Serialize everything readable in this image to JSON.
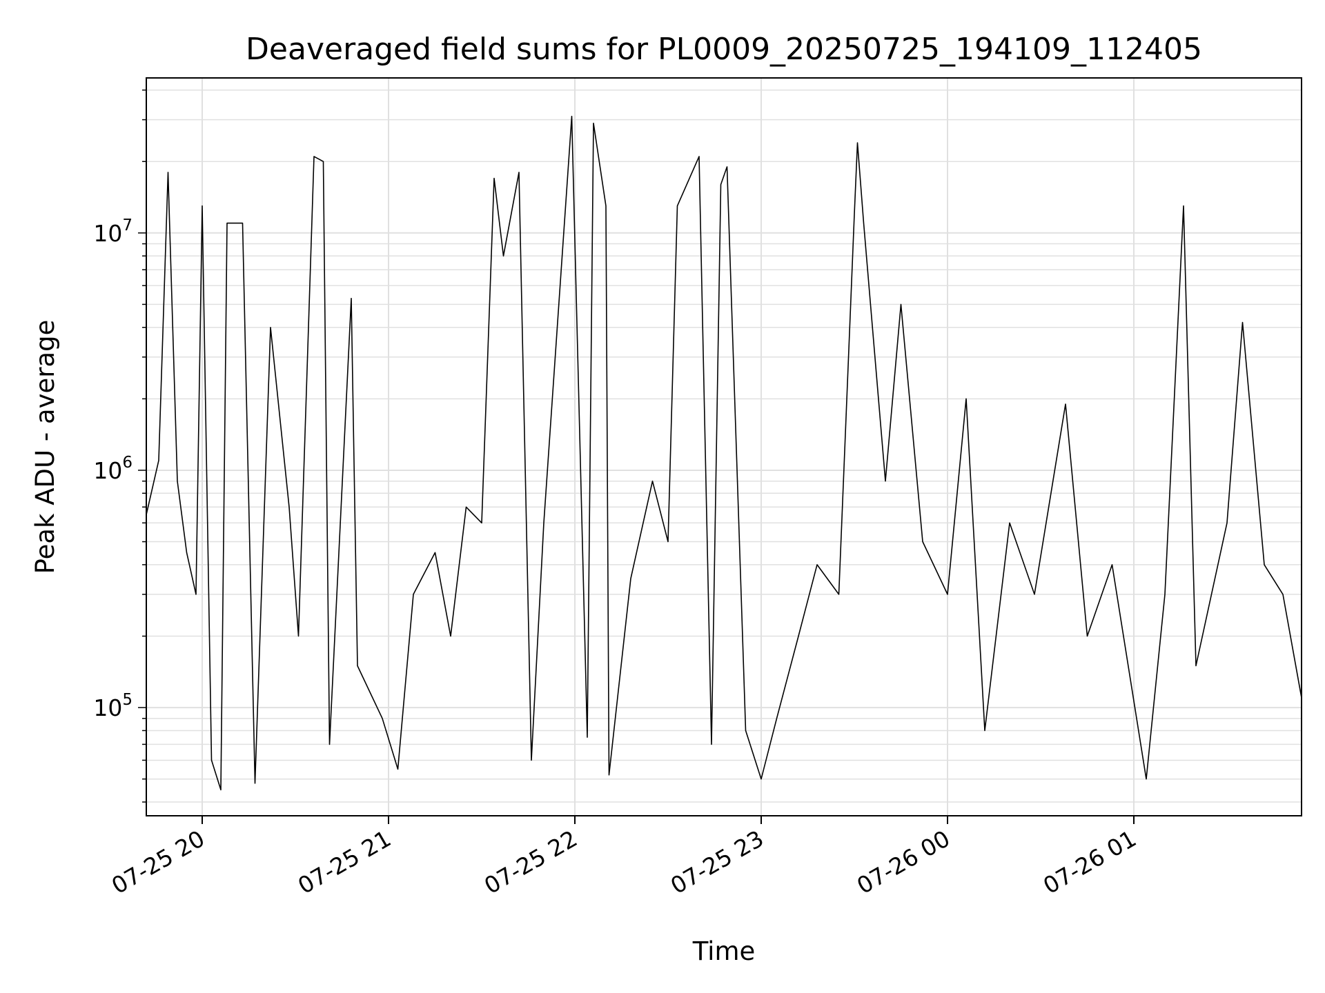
{
  "chart_data": {
    "type": "line",
    "title": "Deaveraged field sums for PL0009_20250725_194109_112405",
    "xlabel": "Time",
    "ylabel": "Peak ADU - average",
    "yscale": "log",
    "grid": true,
    "legend": "none",
    "xlim": [
      "2025-07-25 19:42",
      "2025-07-26 01:54"
    ],
    "ylim": [
      35000,
      45000000
    ],
    "x_ticks": [
      {
        "label": "07-25 20",
        "value": "2025-07-25 20:00"
      },
      {
        "label": "07-25 21",
        "value": "2025-07-25 21:00"
      },
      {
        "label": "07-25 22",
        "value": "2025-07-25 22:00"
      },
      {
        "label": "07-25 23",
        "value": "2025-07-25 23:00"
      },
      {
        "label": "07-26 00",
        "value": "2025-07-26 00:00"
      },
      {
        "label": "07-26 01",
        "value": "2025-07-26 01:00"
      }
    ],
    "y_ticks": [
      {
        "base": "10",
        "exp": "5",
        "value": 100000
      },
      {
        "base": "10",
        "exp": "6",
        "value": 1000000
      },
      {
        "base": "10",
        "exp": "7",
        "value": 10000000
      }
    ],
    "series": [
      {
        "color": "#000000",
        "points": [
          [
            "2025-07-25 19:42",
            650000
          ],
          [
            "2025-07-25 19:46",
            1100000
          ],
          [
            "2025-07-25 19:49",
            18000000
          ],
          [
            "2025-07-25 19:52",
            900000
          ],
          [
            "2025-07-25 19:55",
            450000
          ],
          [
            "2025-07-25 19:58",
            300000
          ],
          [
            "2025-07-25 20:00",
            13000000
          ],
          [
            "2025-07-25 20:03",
            60000
          ],
          [
            "2025-07-25 20:06",
            45000
          ],
          [
            "2025-07-25 20:08",
            11000000
          ],
          [
            "2025-07-25 20:13",
            11000000
          ],
          [
            "2025-07-25 20:17",
            48000
          ],
          [
            "2025-07-25 20:22",
            4000000
          ],
          [
            "2025-07-25 20:28",
            700000
          ],
          [
            "2025-07-25 20:31",
            200000
          ],
          [
            "2025-07-25 20:36",
            21000000
          ],
          [
            "2025-07-25 20:39",
            20000000
          ],
          [
            "2025-07-25 20:41",
            70000
          ],
          [
            "2025-07-25 20:48",
            5300000
          ],
          [
            "2025-07-25 20:50",
            150000
          ],
          [
            "2025-07-25 20:58",
            90000
          ],
          [
            "2025-07-25 21:03",
            55000
          ],
          [
            "2025-07-25 21:08",
            300000
          ],
          [
            "2025-07-25 21:15",
            450000
          ],
          [
            "2025-07-25 21:20",
            200000
          ],
          [
            "2025-07-25 21:25",
            700000
          ],
          [
            "2025-07-25 21:30",
            600000
          ],
          [
            "2025-07-25 21:34",
            17000000
          ],
          [
            "2025-07-25 21:37",
            8000000
          ],
          [
            "2025-07-25 21:42",
            18000000
          ],
          [
            "2025-07-25 21:46",
            60000
          ],
          [
            "2025-07-25 21:50",
            600000
          ],
          [
            "2025-07-25 21:59",
            31000000
          ],
          [
            "2025-07-25 22:04",
            75000
          ],
          [
            "2025-07-25 22:06",
            29000000
          ],
          [
            "2025-07-25 22:10",
            13000000
          ],
          [
            "2025-07-25 22:11",
            52000
          ],
          [
            "2025-07-25 22:18",
            350000
          ],
          [
            "2025-07-25 22:25",
            900000
          ],
          [
            "2025-07-25 22:30",
            500000
          ],
          [
            "2025-07-25 22:33",
            13000000
          ],
          [
            "2025-07-25 22:40",
            21000000
          ],
          [
            "2025-07-25 22:44",
            70000
          ],
          [
            "2025-07-25 22:47",
            16000000
          ],
          [
            "2025-07-25 22:49",
            19000000
          ],
          [
            "2025-07-25 22:55",
            80000
          ],
          [
            "2025-07-25 23:00",
            50000
          ],
          [
            "2025-07-25 23:05",
            90000
          ],
          [
            "2025-07-25 23:12",
            200000
          ],
          [
            "2025-07-25 23:18",
            400000
          ],
          [
            "2025-07-25 23:25",
            300000
          ],
          [
            "2025-07-25 23:30",
            12000000
          ],
          [
            "2025-07-25 23:31",
            24000000
          ],
          [
            "2025-07-25 23:33",
            11000000
          ],
          [
            "2025-07-25 23:40",
            900000
          ],
          [
            "2025-07-25 23:45",
            5000000
          ],
          [
            "2025-07-25 23:52",
            500000
          ],
          [
            "2025-07-26 00:00",
            300000
          ],
          [
            "2025-07-26 00:06",
            2000000
          ],
          [
            "2025-07-26 00:12",
            80000
          ],
          [
            "2025-07-26 00:20",
            600000
          ],
          [
            "2025-07-26 00:28",
            300000
          ],
          [
            "2025-07-26 00:38",
            1900000
          ],
          [
            "2025-07-26 00:45",
            200000
          ],
          [
            "2025-07-26 00:53",
            400000
          ],
          [
            "2025-07-26 01:04",
            50000
          ],
          [
            "2025-07-26 01:10",
            300000
          ],
          [
            "2025-07-26 01:16",
            13000000
          ],
          [
            "2025-07-26 01:20",
            150000
          ],
          [
            "2025-07-26 01:30",
            600000
          ],
          [
            "2025-07-26 01:35",
            4200000
          ],
          [
            "2025-07-26 01:42",
            400000
          ],
          [
            "2025-07-26 01:48",
            300000
          ],
          [
            "2025-07-26 01:54",
            110000
          ]
        ]
      }
    ]
  }
}
